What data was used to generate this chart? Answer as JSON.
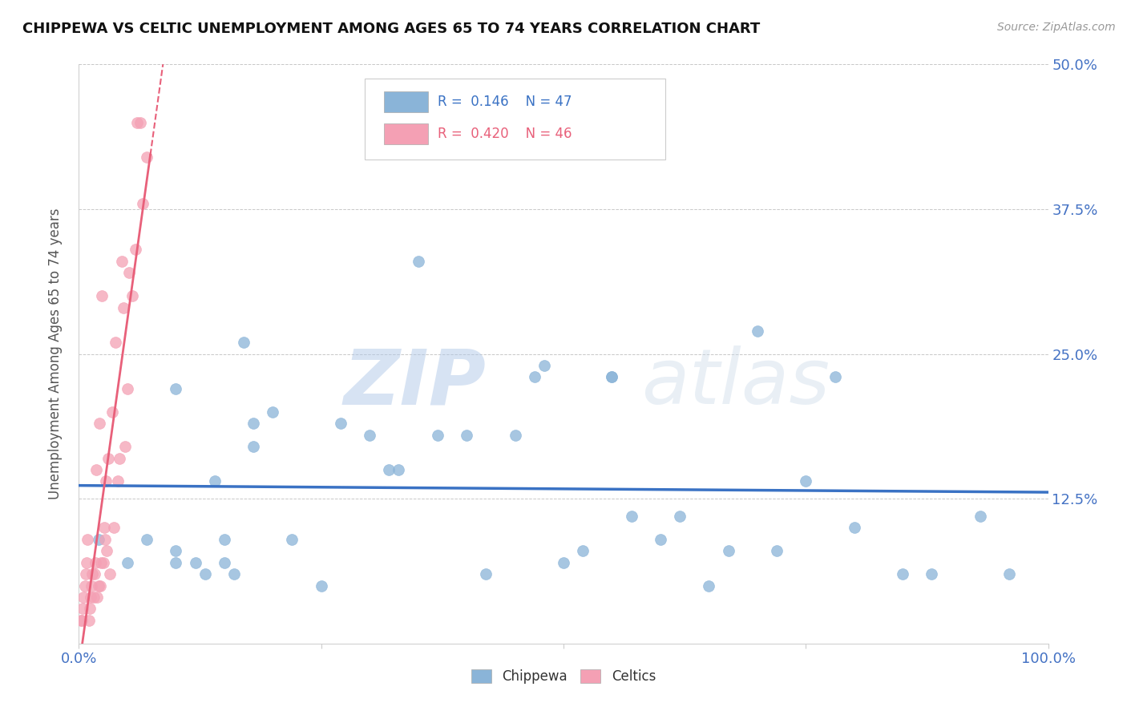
{
  "title": "CHIPPEWA VS CELTIC UNEMPLOYMENT AMONG AGES 65 TO 74 YEARS CORRELATION CHART",
  "source": "Source: ZipAtlas.com",
  "ylabel": "Unemployment Among Ages 65 to 74 years",
  "xlim": [
    0.0,
    1.0
  ],
  "ylim": [
    0.0,
    0.5
  ],
  "xtick_positions": [
    0.0,
    0.25,
    0.5,
    0.75,
    1.0
  ],
  "xticklabels": [
    "0.0%",
    "",
    "",
    "",
    "100.0%"
  ],
  "ytick_positions": [
    0.0,
    0.125,
    0.25,
    0.375,
    0.5
  ],
  "yticklabels_right": [
    "",
    "12.5%",
    "25.0%",
    "37.5%",
    "50.0%"
  ],
  "chippewa_R": "0.146",
  "chippewa_N": "47",
  "celtics_R": "0.420",
  "celtics_N": "46",
  "chippewa_color": "#8ab4d8",
  "celtics_color": "#f4a0b4",
  "chippewa_line_color": "#3a72c4",
  "celtics_line_color": "#e8607a",
  "background_color": "#ffffff",
  "watermark_zip": "ZIP",
  "watermark_atlas": "atlas",
  "chippewa_x": [
    0.02,
    0.05,
    0.07,
    0.1,
    0.1,
    0.1,
    0.12,
    0.13,
    0.14,
    0.15,
    0.15,
    0.16,
    0.17,
    0.18,
    0.18,
    0.2,
    0.22,
    0.25,
    0.27,
    0.3,
    0.32,
    0.33,
    0.35,
    0.37,
    0.4,
    0.42,
    0.45,
    0.47,
    0.48,
    0.5,
    0.52,
    0.55,
    0.55,
    0.57,
    0.6,
    0.62,
    0.65,
    0.67,
    0.7,
    0.72,
    0.75,
    0.78,
    0.8,
    0.85,
    0.88,
    0.93,
    0.96
  ],
  "chippewa_y": [
    0.09,
    0.07,
    0.09,
    0.07,
    0.08,
    0.22,
    0.07,
    0.06,
    0.14,
    0.09,
    0.07,
    0.06,
    0.26,
    0.19,
    0.17,
    0.2,
    0.09,
    0.05,
    0.19,
    0.18,
    0.15,
    0.15,
    0.33,
    0.18,
    0.18,
    0.06,
    0.18,
    0.23,
    0.24,
    0.07,
    0.08,
    0.23,
    0.23,
    0.11,
    0.09,
    0.11,
    0.05,
    0.08,
    0.27,
    0.08,
    0.14,
    0.23,
    0.1,
    0.06,
    0.06,
    0.11,
    0.06
  ],
  "celtics_x": [
    0.002,
    0.003,
    0.004,
    0.005,
    0.006,
    0.007,
    0.008,
    0.009,
    0.01,
    0.011,
    0.012,
    0.013,
    0.014,
    0.015,
    0.016,
    0.017,
    0.018,
    0.019,
    0.02,
    0.021,
    0.022,
    0.023,
    0.024,
    0.025,
    0.026,
    0.027,
    0.028,
    0.029,
    0.03,
    0.032,
    0.034,
    0.036,
    0.038,
    0.04,
    0.042,
    0.044,
    0.046,
    0.048,
    0.05,
    0.052,
    0.055,
    0.058,
    0.06,
    0.063,
    0.066,
    0.07
  ],
  "celtics_y": [
    0.02,
    0.02,
    0.03,
    0.04,
    0.05,
    0.06,
    0.07,
    0.09,
    0.02,
    0.03,
    0.04,
    0.05,
    0.06,
    0.04,
    0.06,
    0.07,
    0.15,
    0.04,
    0.05,
    0.19,
    0.05,
    0.07,
    0.3,
    0.07,
    0.1,
    0.09,
    0.14,
    0.08,
    0.16,
    0.06,
    0.2,
    0.1,
    0.26,
    0.14,
    0.16,
    0.33,
    0.29,
    0.17,
    0.22,
    0.32,
    0.3,
    0.34,
    0.45,
    0.45,
    0.38,
    0.42
  ],
  "legend_R_color": "#3a72c4",
  "legend_R2_color": "#e8607a"
}
